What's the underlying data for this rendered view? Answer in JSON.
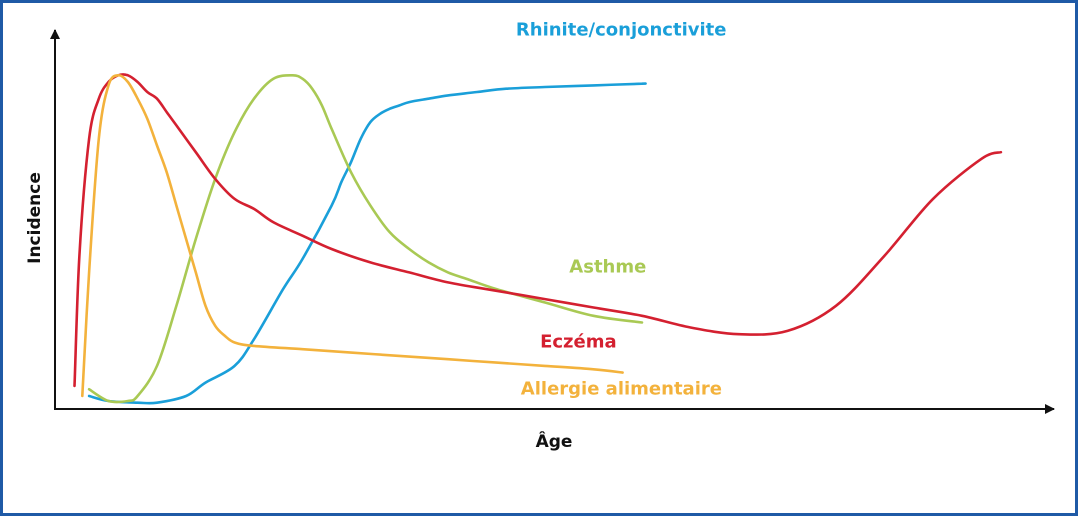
{
  "chart_data": {
    "type": "line",
    "xlabel": "Âge",
    "ylabel": "Incidence",
    "grid": false,
    "legend": "inline labels next to each curve",
    "xlim": [
      0,
      100
    ],
    "ylim": [
      0,
      100
    ],
    "series": [
      {
        "name": "Rhinite/conjonctivite",
        "color": "#1a9fd9",
        "x": [
          3,
          5,
          8,
          10,
          13,
          15,
          18,
          20,
          23,
          25,
          28,
          29,
          30,
          31,
          32,
          33,
          34,
          35,
          36,
          38,
          40,
          43,
          46,
          50,
          55,
          60,
          60
        ],
        "y": [
          3,
          1.5,
          1,
          1,
          3,
          7,
          12,
          20,
          35,
          44,
          60,
          67,
          73,
          80,
          85,
          87.5,
          89,
          90,
          91,
          92,
          93,
          94,
          95,
          95.5,
          96,
          96.5,
          96.5
        ]
      },
      {
        "name": "Asthme",
        "color": "#a9c954",
        "x": [
          3,
          5,
          7,
          8,
          10,
          12,
          14,
          16,
          18,
          20,
          22,
          24,
          25,
          26,
          27,
          28,
          30,
          32,
          34,
          36,
          38,
          40,
          42,
          45,
          50,
          55,
          60
        ],
        "y": [
          5,
          1.5,
          1.5,
          3,
          12,
          30,
          50,
          68,
          82,
          92,
          98,
          99,
          98,
          95,
          90,
          83,
          70,
          60,
          52,
          47,
          43,
          40,
          38,
          35,
          31,
          27,
          25
        ]
      },
      {
        "name": "Eczéma",
        "color": "#d42030",
        "x": [
          1.5,
          2,
          3,
          4,
          5,
          6,
          7,
          8,
          9,
          10,
          11,
          12,
          14,
          16,
          18,
          20,
          22,
          25,
          28,
          32,
          36,
          40,
          45,
          50,
          55,
          60,
          65,
          70,
          75,
          80,
          85,
          90,
          95,
          97
        ],
        "y": [
          6,
          45,
          80,
          92,
          97,
          99,
          99,
          97,
          94,
          92,
          88,
          84,
          76,
          68,
          62,
          59,
          55,
          51,
          47,
          43,
          40,
          37,
          34.5,
          32,
          29.5,
          27,
          23.5,
          21.5,
          22.5,
          30,
          45,
          62,
          74,
          76
        ]
      },
      {
        "name": "Allergie alimentaire",
        "color": "#f3b23c",
        "x": [
          2.3,
          3,
          4,
          5,
          6,
          7,
          8,
          9,
          10,
          11,
          12,
          13,
          14,
          15,
          16,
          17,
          18,
          20,
          25,
          30,
          35,
          40,
          45,
          50,
          55,
          58
        ],
        "y": [
          3,
          40,
          80,
          96,
          99,
          97,
          92,
          86,
          78,
          70,
          60,
          50,
          40,
          30,
          24,
          21,
          19,
          18,
          17,
          16,
          15,
          14,
          13,
          12,
          11,
          10
        ]
      }
    ],
    "labels": [
      {
        "series": "Rhinite/conjonctivite",
        "text": "Rhinite/conjonctivite",
        "x": 47,
        "y": 111,
        "anchor": "start"
      },
      {
        "series": "Asthme",
        "text": "Asthme",
        "x": 52.5,
        "y": 40,
        "anchor": "start"
      },
      {
        "series": "Eczéma",
        "text": "Eczéma",
        "x": 49.5,
        "y": 17.5,
        "anchor": "start"
      },
      {
        "series": "Allergie alimentaire",
        "text": "Allergie alimentaire",
        "x": 47.5,
        "y": 3.5,
        "anchor": "start"
      }
    ]
  }
}
